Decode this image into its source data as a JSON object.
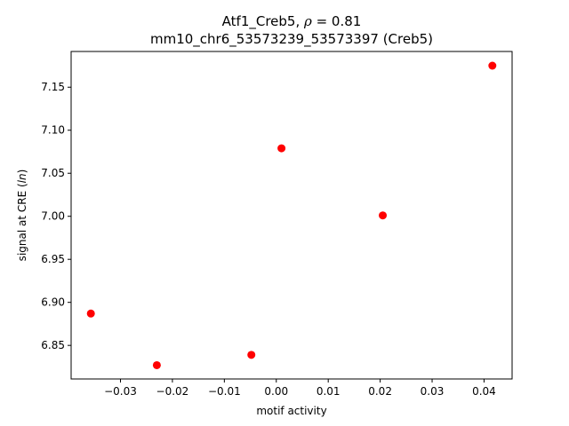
{
  "chart_data": {
    "type": "scatter",
    "title_line1_prefix": "Atf1_Creb5, ",
    "title_line1_rho": "ρ",
    "title_line1_suffix": " = 0.81",
    "title_line2": "mm10_chr6_53573239_53573397 (Creb5)",
    "xlabel": "motif activity",
    "ylabel_prefix": "signal at CRE (",
    "ylabel_italic": "ln",
    "ylabel_suffix": ")",
    "xlim": [
      -0.0395,
      0.0454
    ],
    "ylim": [
      6.811,
      7.1915
    ],
    "xticks": [
      -0.03,
      -0.02,
      -0.01,
      0.0,
      0.01,
      0.02,
      0.03,
      0.04
    ],
    "xtick_labels": [
      "−0.03",
      "−0.02",
      "−0.01",
      "0.00",
      "0.01",
      "0.02",
      "0.03",
      "0.04"
    ],
    "yticks": [
      6.85,
      6.9,
      6.95,
      7.0,
      7.05,
      7.1,
      7.15
    ],
    "ytick_labels": [
      "6.85",
      "6.90",
      "6.95",
      "7.00",
      "7.05",
      "7.10",
      "7.15"
    ],
    "grid": false,
    "marker_color": "#ff0000",
    "points": [
      {
        "x": -0.0357,
        "y": 6.887
      },
      {
        "x": -0.023,
        "y": 6.827
      },
      {
        "x": -0.0048,
        "y": 6.839
      },
      {
        "x": 0.001,
        "y": 7.079
      },
      {
        "x": 0.0205,
        "y": 7.001
      },
      {
        "x": 0.0416,
        "y": 7.175
      }
    ]
  }
}
